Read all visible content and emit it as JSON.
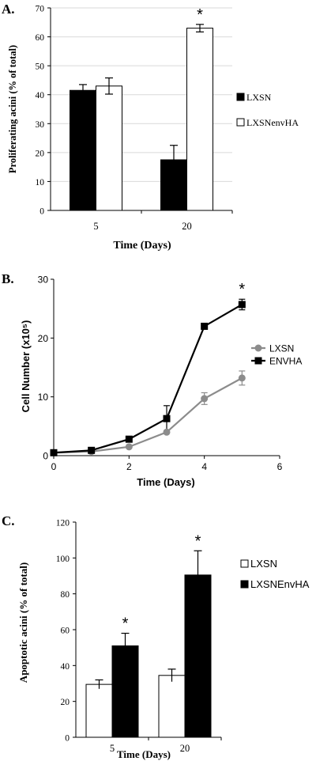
{
  "colors": {
    "black": "#000000",
    "white": "#ffffff",
    "gray_series": "#8c8c8c",
    "grid": "#d9d9d9",
    "axis": "#000000",
    "error": "#000000"
  },
  "chart_data": [
    {
      "panel": "A.",
      "type": "bar",
      "categories": [
        "5",
        "20"
      ],
      "series": [
        {
          "name": "LXSN",
          "values": [
            41.5,
            17.5
          ],
          "errors": [
            2.0,
            5.0
          ],
          "color": "#000000"
        },
        {
          "name": "LXSNenvHA",
          "values": [
            43.0,
            63.0
          ],
          "errors": [
            2.8,
            1.3
          ],
          "color": "#ffffff"
        }
      ],
      "xlabel": "Time (Days)",
      "ylabel": "Proliferating acini (% of total)",
      "ylim": [
        0,
        70
      ],
      "yticks": [
        "0",
        "10",
        "20",
        "30",
        "40",
        "50",
        "60",
        "70"
      ],
      "annotations": [
        {
          "category": "20",
          "text": "*"
        }
      ],
      "grid": true,
      "legend": "right"
    },
    {
      "panel": "B.",
      "type": "line",
      "series": [
        {
          "name": "LXSN",
          "x": [
            0,
            1,
            2,
            3,
            4,
            5
          ],
          "y": [
            0.5,
            0.7,
            1.5,
            4.0,
            9.7,
            13.2
          ],
          "errors": [
            0,
            0,
            0,
            0,
            1.0,
            1.2
          ],
          "color": "#8c8c8c",
          "marker": "circle"
        },
        {
          "name": "ENVHA",
          "x": [
            0,
            1,
            2,
            3,
            4,
            5
          ],
          "y": [
            0.5,
            0.9,
            2.8,
            6.3,
            22.0,
            25.7
          ],
          "errors": [
            0,
            0,
            0,
            2.2,
            0,
            0.9
          ],
          "color": "#000000",
          "marker": "square"
        }
      ],
      "xlabel": "Time (Days)",
      "ylabel": "Cell Number (x10⁵)",
      "xlim": [
        0,
        6
      ],
      "ylim": [
        0,
        30
      ],
      "xticks": [
        "0",
        "2",
        "4",
        "6"
      ],
      "yticks": [
        "0",
        "10",
        "20",
        "30"
      ],
      "annotations": [
        {
          "x": 5,
          "text": "*"
        }
      ],
      "grid": false,
      "legend": "right"
    },
    {
      "panel": "C.",
      "type": "bar",
      "categories": [
        "5",
        "20"
      ],
      "series": [
        {
          "name": "LXSN",
          "values": [
            29.5,
            34.5
          ],
          "errors": [
            2.5,
            3.5
          ],
          "color": "#ffffff"
        },
        {
          "name": "LXSNEnvHA",
          "values": [
            51.0,
            90.5
          ],
          "errors": [
            7.0,
            13.5
          ],
          "color": "#000000"
        }
      ],
      "xlabel": "Time (Days)",
      "ylabel": "Apoptotic acini (% of total)",
      "ylim": [
        0,
        120
      ],
      "yticks": [
        "0",
        "20",
        "40",
        "60",
        "80",
        "100",
        "120"
      ],
      "annotations": [
        {
          "category": "5",
          "text": "*"
        },
        {
          "category": "20",
          "text": "*"
        }
      ],
      "grid": false,
      "legend": "right"
    }
  ]
}
